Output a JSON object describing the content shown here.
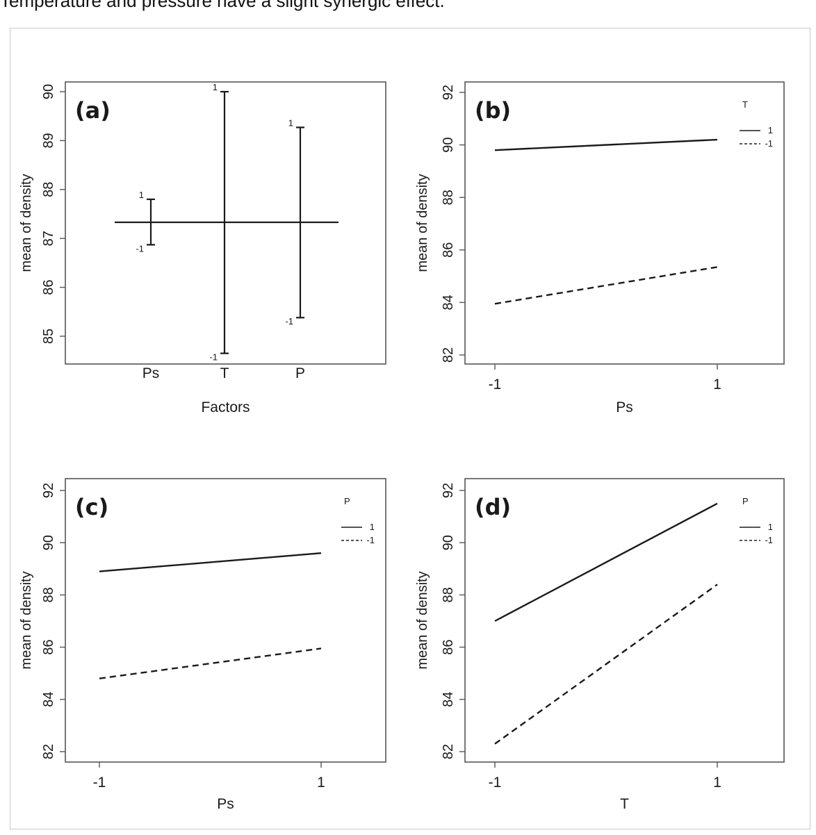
{
  "caption": "Temperature and pressure have a slight synergic effect.",
  "colors": {
    "line": "#1a1a1a",
    "frame": "#555555",
    "text": "#1a1a1a"
  },
  "chart_data": [
    {
      "id": "a",
      "type": "line",
      "label": "(a)",
      "xlabel": "Factors",
      "ylabel": "mean of density",
      "ylim": [
        84.5,
        90.0
      ],
      "yticks": [
        85,
        86,
        87,
        88,
        89,
        90
      ],
      "grand_mean": 87.33,
      "categories": [
        "Ps",
        "T",
        "P"
      ],
      "ranges": [
        {
          "factor": "Ps",
          "high_label": "1",
          "high": 87.8,
          "low_label": "-1",
          "low": 86.87
        },
        {
          "factor": "T",
          "high_label": "1",
          "high": 90.0,
          "low_label": "-1",
          "low": 84.65
        },
        {
          "factor": "P",
          "high_label": "1",
          "high": 89.27,
          "low_label": "-1",
          "low": 85.38
        }
      ],
      "grid": false
    },
    {
      "id": "b",
      "type": "line",
      "label": "(b)",
      "xlabel": "Ps",
      "ylabel": "mean of  density",
      "ylim": [
        82,
        92
      ],
      "yticks": [
        82,
        84,
        86,
        88,
        90,
        92
      ],
      "xticks": [
        "-1",
        "1"
      ],
      "legend": {
        "title": "T",
        "position": "top-right"
      },
      "series": [
        {
          "name": "1",
          "style": "solid",
          "values": [
            89.8,
            90.2
          ]
        },
        {
          "name": "-1",
          "style": "dashed",
          "values": [
            83.95,
            85.35
          ]
        }
      ],
      "grid": false
    },
    {
      "id": "c",
      "type": "line",
      "label": "(c)",
      "xlabel": "Ps",
      "ylabel": "mean of  density",
      "ylim": [
        82,
        92
      ],
      "yticks": [
        82,
        84,
        86,
        88,
        90,
        92
      ],
      "xticks": [
        "-1",
        "1"
      ],
      "legend": {
        "title": "P",
        "position": "top-right"
      },
      "series": [
        {
          "name": "1",
          "style": "solid",
          "values": [
            88.9,
            89.6
          ]
        },
        {
          "name": "-1",
          "style": "dashed",
          "values": [
            84.8,
            85.95
          ]
        }
      ],
      "grid": false
    },
    {
      "id": "d",
      "type": "line",
      "label": "(d)",
      "xlabel": "T",
      "ylabel": "mean of  density",
      "ylim": [
        82,
        92
      ],
      "yticks": [
        82,
        84,
        86,
        88,
        90,
        92
      ],
      "xticks": [
        "-1",
        "1"
      ],
      "legend": {
        "title": "P",
        "position": "top-right"
      },
      "series": [
        {
          "name": "1",
          "style": "solid",
          "values": [
            87.0,
            91.5
          ]
        },
        {
          "name": "-1",
          "style": "dashed",
          "values": [
            82.3,
            88.4
          ]
        }
      ],
      "grid": false
    }
  ]
}
